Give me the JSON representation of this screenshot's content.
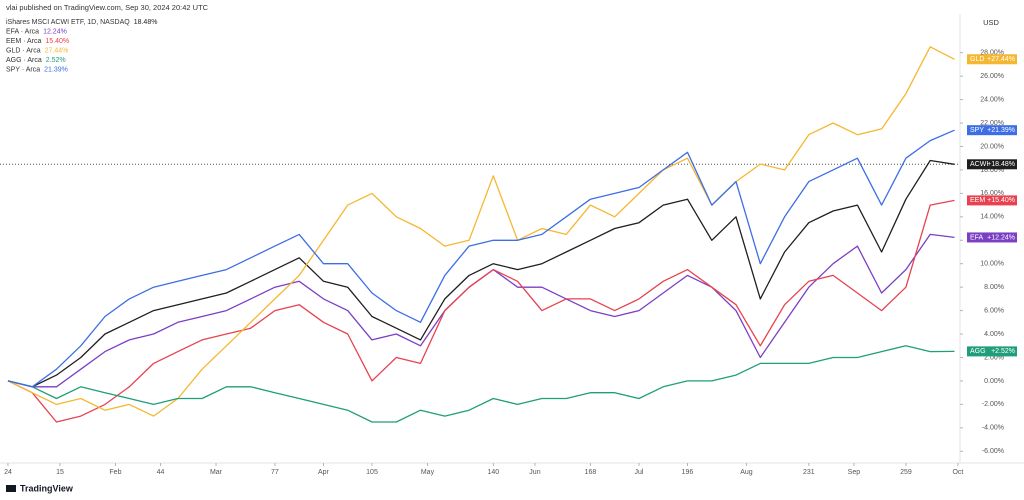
{
  "chart_data": {
    "type": "line",
    "published": "vlai published on TradingView.com, Sep 30, 2024 20:42 UTC",
    "currency": "USD",
    "brand": "TradingView",
    "x": [
      0,
      7,
      14,
      21,
      28,
      35,
      42,
      49,
      56,
      63,
      70,
      77,
      84,
      91,
      98,
      105,
      112,
      119,
      126,
      133,
      140,
      147,
      154,
      161,
      168,
      175,
      182,
      189,
      196,
      203,
      210,
      217,
      224,
      231,
      238,
      245,
      252,
      259,
      266,
      273
    ],
    "xlim": [
      -2.3,
      274.6
    ],
    "xticks": [
      {
        "value": 0,
        "label": "24"
      },
      15,
      {
        "value": 31,
        "label": "Feb"
      },
      44,
      {
        "value": 60,
        "label": "Mar"
      },
      77,
      {
        "value": 91,
        "label": "Apr"
      },
      105,
      {
        "value": 121,
        "label": "May"
      },
      140,
      {
        "value": 152,
        "label": "Jun"
      },
      168,
      {
        "value": 182,
        "label": "Jul"
      },
      196,
      {
        "value": 213,
        "label": "Aug"
      },
      231,
      {
        "value": 244,
        "label": "Sep"
      },
      259,
      {
        "value": 274,
        "label": "Oct"
      }
    ],
    "ylim": [
      -7,
      31.3
    ],
    "yticks": [
      {
        "value": -6,
        "label": "-6.00%"
      },
      {
        "value": -4,
        "label": "-4.00%"
      },
      {
        "value": -2,
        "label": "-2.00%"
      },
      {
        "value": 0,
        "label": "0.00%"
      },
      {
        "value": 2,
        "label": "2.00%"
      },
      {
        "value": 4,
        "label": "4.00%"
      },
      {
        "value": 6,
        "label": "6.00%"
      },
      {
        "value": 8,
        "label": "8.00%"
      },
      {
        "value": 10,
        "label": "10.00%"
      },
      {
        "value": 12,
        "label": "12.00%"
      },
      {
        "value": 14,
        "label": "14.00%"
      },
      {
        "value": 16,
        "label": "16.00%"
      },
      {
        "value": 18,
        "label": "18.00%"
      },
      {
        "value": 20,
        "label": "20.00%"
      },
      {
        "value": 22,
        "label": "22.00%"
      },
      {
        "value": 24,
        "label": "24.00%"
      },
      {
        "value": 26,
        "label": "26.00%"
      },
      {
        "value": 28,
        "label": "28.00%"
      }
    ],
    "grid": false,
    "series": [
      {
        "name": "ACWI",
        "legend": "iShares MSCI ACWI ETF, 1D, NASDAQ",
        "legend_value": "18.48%",
        "last_label": "+18.48%",
        "color": "#1f1f1f",
        "price_line": true,
        "values": [
          0,
          -0.5,
          0.5,
          2,
          4,
          5,
          6,
          6.5,
          7,
          7.5,
          8.5,
          9.5,
          10.5,
          8.5,
          8,
          5.5,
          4.5,
          3.5,
          7,
          9,
          10,
          9.5,
          10,
          11,
          12,
          13,
          13.5,
          15,
          15.5,
          12,
          14,
          7,
          11,
          13.5,
          14.5,
          15,
          11,
          15.5,
          18.8,
          18.48
        ]
      },
      {
        "name": "EFA",
        "legend": "EFA · Arca",
        "legend_value": "12.24%",
        "last_label": "+12.24%",
        "color": "#7b3fc4",
        "price_line": false,
        "values": [
          0,
          -0.5,
          -0.5,
          1,
          2.5,
          3.5,
          4,
          5,
          5.5,
          6,
          7,
          8,
          8.5,
          7,
          6,
          3.5,
          4,
          3,
          6,
          8,
          9.5,
          8,
          8,
          7,
          6,
          5.5,
          6,
          7.5,
          9,
          8,
          6,
          2,
          5,
          8,
          10,
          11.5,
          7.5,
          9.5,
          12.5,
          12.24
        ]
      },
      {
        "name": "EEM",
        "legend": "EEM · Arca",
        "legend_value": "15.40%",
        "last_label": "+15.40%",
        "color": "#e8414f",
        "price_line": false,
        "values": [
          0,
          -1,
          -3.5,
          -3,
          -2,
          -0.5,
          1.5,
          2.5,
          3.5,
          4,
          4.5,
          6,
          6.5,
          5,
          4,
          0,
          2,
          1.5,
          6,
          8,
          9.5,
          8.5,
          6,
          7,
          7,
          6,
          7,
          8.5,
          9.5,
          8,
          6.5,
          3,
          6.5,
          8.5,
          9,
          7.5,
          6,
          8,
          15,
          15.4
        ]
      },
      {
        "name": "GLD",
        "legend": "GLD · Arca",
        "legend_value": "27.44%",
        "last_label": "+27.44%",
        "color": "#f5b731",
        "price_line": false,
        "values": [
          0,
          -1,
          -2,
          -1.5,
          -2.5,
          -2,
          -3,
          -1.5,
          1,
          3,
          5,
          7,
          9,
          12,
          15,
          16,
          14,
          13,
          11.5,
          12,
          17.5,
          12,
          13,
          12.5,
          15,
          14,
          16,
          18,
          19,
          15,
          17,
          18.5,
          18,
          21,
          22,
          21,
          21.5,
          24.5,
          28.5,
          27.44
        ]
      },
      {
        "name": "AGG",
        "legend": "AGG · Arca",
        "legend_value": "2.52%",
        "last_label": "+2.52%",
        "color": "#1e9e7a",
        "price_line": false,
        "values": [
          0,
          -0.5,
          -1.5,
          -0.5,
          -1,
          -1.5,
          -2,
          -1.5,
          -1.5,
          -0.5,
          -0.5,
          -1,
          -1.5,
          -2,
          -2.5,
          -3.5,
          -3.5,
          -2.5,
          -3,
          -2.5,
          -1.5,
          -2,
          -1.5,
          -1.5,
          -1,
          -1,
          -1.5,
          -0.5,
          0,
          0,
          0.5,
          1.5,
          1.5,
          1.5,
          2,
          2,
          2.5,
          3,
          2.5,
          2.52
        ]
      },
      {
        "name": "SPY",
        "legend": "SPY · Arca",
        "legend_value": "21.39%",
        "last_label": "+21.39%",
        "color": "#3d6ee6",
        "price_line": false,
        "values": [
          0,
          -0.5,
          1,
          3,
          5.5,
          7,
          8,
          8.5,
          9,
          9.5,
          10.5,
          11.5,
          12.5,
          10,
          10,
          7.5,
          6,
          5,
          9,
          11.5,
          12,
          12,
          12.5,
          14,
          15.5,
          16,
          16.5,
          18,
          19.5,
          15,
          17,
          10,
          14,
          17,
          18,
          19,
          15,
          19,
          20.5,
          21.39
        ]
      }
    ]
  }
}
